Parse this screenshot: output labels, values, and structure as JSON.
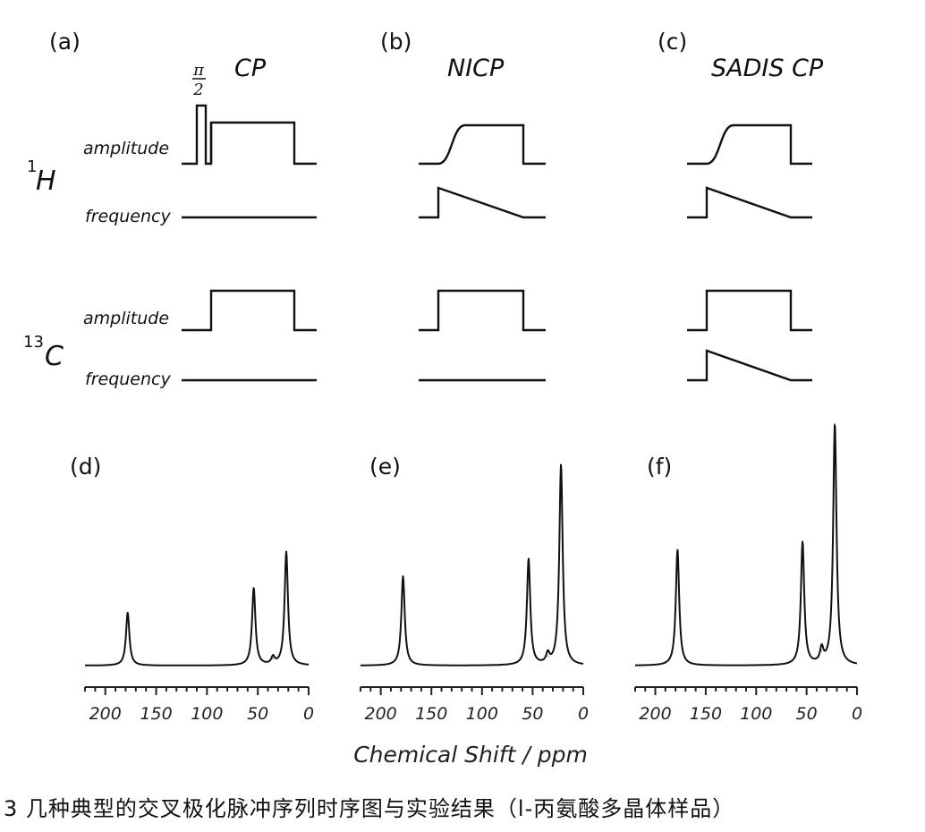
{
  "panels": {
    "a": {
      "label": "(a)",
      "title": "CP"
    },
    "b": {
      "label": "(b)",
      "title": "NICP"
    },
    "c": {
      "label": "(c)",
      "title": "SADIS CP"
    },
    "d": {
      "label": "(d)"
    },
    "e": {
      "label": "(e)"
    },
    "f": {
      "label": "(f)"
    }
  },
  "rows": {
    "amplitude": "amplitude",
    "frequency": "frequency"
  },
  "nuclei": {
    "h": {
      "sup": "1",
      "sym": "H"
    },
    "c": {
      "sup": "13",
      "sym": "C"
    }
  },
  "pi_half": {
    "num": "π",
    "den": "2"
  },
  "x_axis": {
    "label": "Chemical Shift / ppm",
    "ticks": [
      "200",
      "150",
      "100",
      "50",
      "0"
    ]
  },
  "caption": "3 几种典型的交叉极化脉冲序列时序图与实验结果（l-丙氨酸多晶体样品）",
  "chart_data": [
    {
      "type": "line",
      "panel": "(d)",
      "xlabel": "Chemical Shift / ppm",
      "xlim": [
        220,
        0
      ],
      "x_ticks": [
        200,
        150,
        100,
        50,
        0
      ],
      "peaks": [
        {
          "x": 178,
          "height": 0.22
        },
        {
          "x": 54,
          "height": 0.32
        },
        {
          "x": 35,
          "height": 0.03
        },
        {
          "x": 22,
          "height": 0.47
        }
      ]
    },
    {
      "type": "line",
      "panel": "(e)",
      "xlabel": "Chemical Shift / ppm",
      "xlim": [
        220,
        0
      ],
      "x_ticks": [
        200,
        150,
        100,
        50,
        0
      ],
      "peaks": [
        {
          "x": 178,
          "height": 0.37
        },
        {
          "x": 54,
          "height": 0.44
        },
        {
          "x": 35,
          "height": 0.04
        },
        {
          "x": 22,
          "height": 0.83
        }
      ]
    },
    {
      "type": "line",
      "panel": "(f)",
      "xlabel": "Chemical Shift / ppm",
      "xlim": [
        220,
        0
      ],
      "x_ticks": [
        200,
        150,
        100,
        50,
        0
      ],
      "peaks": [
        {
          "x": 178,
          "height": 0.48
        },
        {
          "x": 54,
          "height": 0.51
        },
        {
          "x": 35,
          "height": 0.06
        },
        {
          "x": 22,
          "height": 1.0
        }
      ]
    }
  ]
}
